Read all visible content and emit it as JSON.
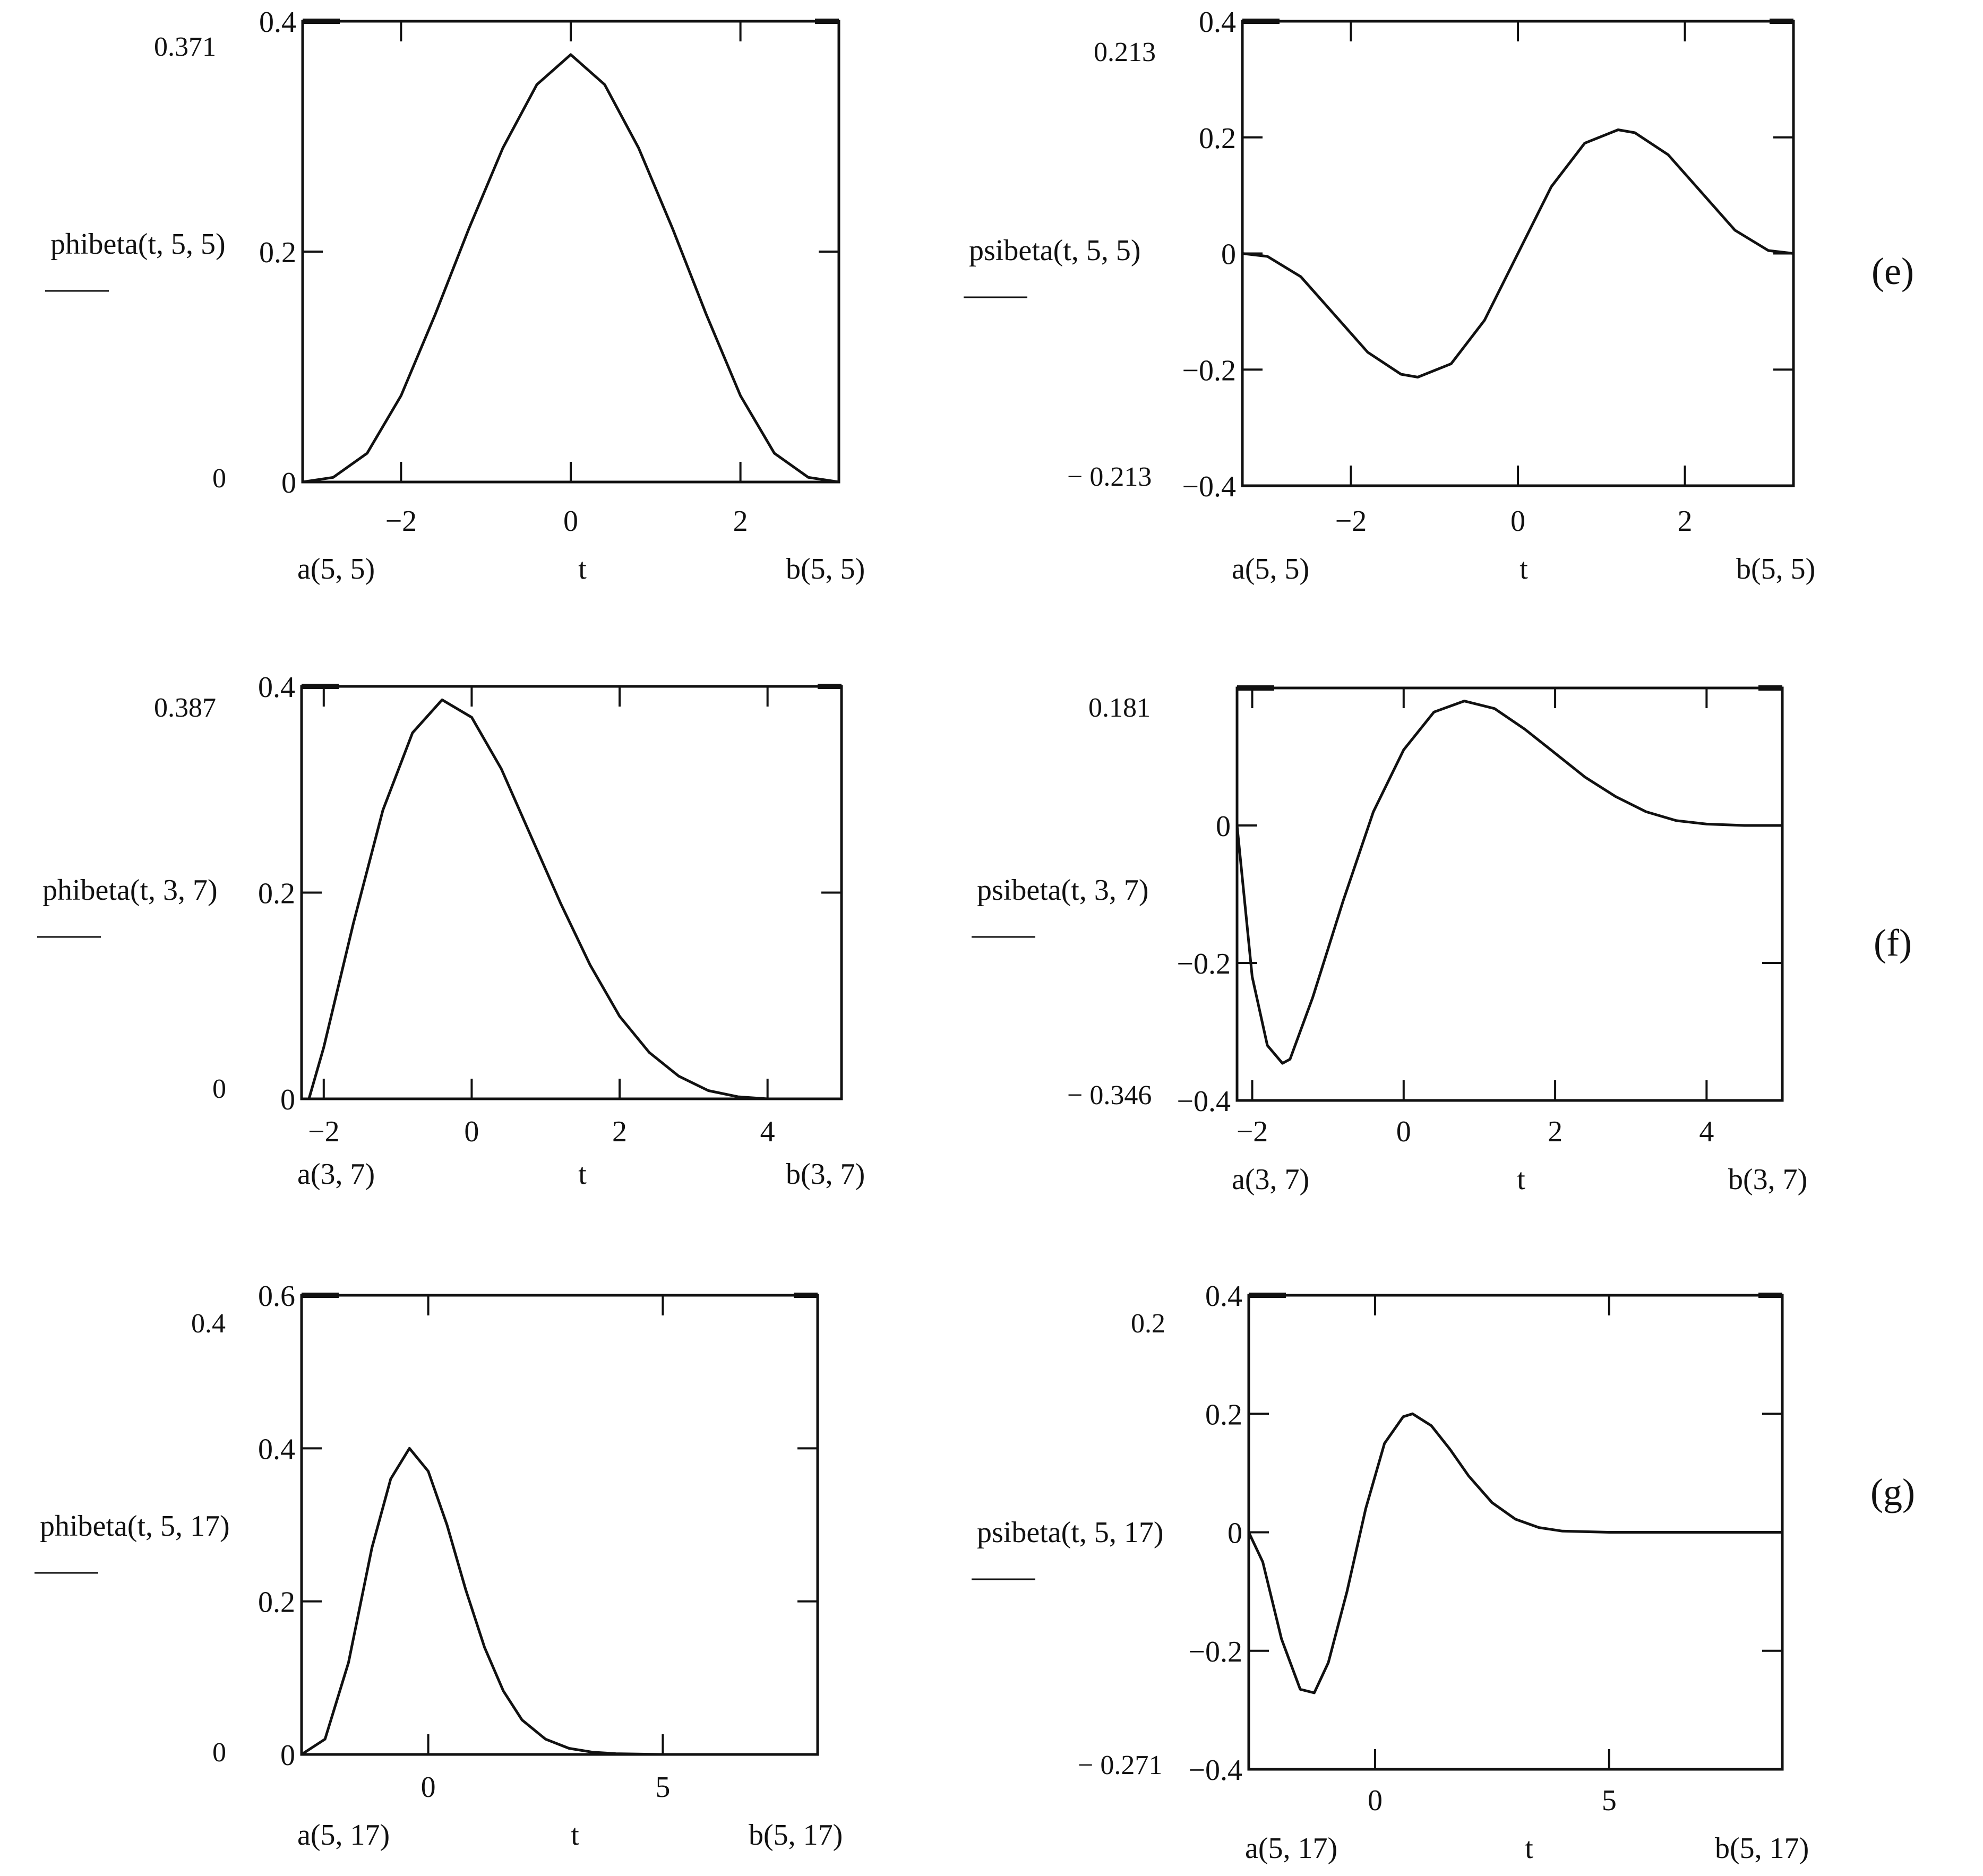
{
  "charts": [
    {
      "id": "e-left",
      "ylabel": "phibeta(t, 5, 5)",
      "xlabel": "t",
      "xlim_left_label": "a(5, 5)",
      "xlim_right_label": "b(5, 5)",
      "ymax_marker": "0.371",
      "ymin_marker": "0",
      "xticks": [
        {
          "v": -2,
          "label": "−2"
        },
        {
          "v": 0,
          "label": "0"
        },
        {
          "v": 2,
          "label": "2"
        }
      ],
      "yticks": [
        {
          "v": 0,
          "label": "0"
        },
        {
          "v": 0.2,
          "label": "0.2"
        },
        {
          "v": 0.4,
          "label": "0.4"
        }
      ]
    },
    {
      "id": "e-right",
      "ylabel": "psibeta(t, 5, 5)",
      "xlabel": "t",
      "xlim_left_label": "a(5, 5)",
      "xlim_right_label": "b(5, 5)",
      "ymax_marker": "0.213",
      "ymin_marker": "− 0.213",
      "xticks": [
        {
          "v": -2,
          "label": "−2"
        },
        {
          "v": 0,
          "label": "0"
        },
        {
          "v": 2,
          "label": "2"
        }
      ],
      "yticks": [
        {
          "v": -0.4,
          "label": "−0.4"
        },
        {
          "v": -0.2,
          "label": "−0.2"
        },
        {
          "v": 0,
          "label": "0"
        },
        {
          "v": 0.2,
          "label": "0.2"
        },
        {
          "v": 0.4,
          "label": "0.4"
        }
      ]
    },
    {
      "id": "f-left",
      "ylabel": "phibeta(t, 3, 7)",
      "xlabel": "t",
      "xlim_left_label": "a(3, 7)",
      "xlim_right_label": "b(3, 7)",
      "ymax_marker": "0.387",
      "ymin_marker": "0",
      "xticks": [
        {
          "v": -2,
          "label": "−2"
        },
        {
          "v": 0,
          "label": "0"
        },
        {
          "v": 2,
          "label": "2"
        },
        {
          "v": 4,
          "label": "4"
        }
      ],
      "yticks": [
        {
          "v": 0,
          "label": "0"
        },
        {
          "v": 0.2,
          "label": "0.2"
        },
        {
          "v": 0.4,
          "label": "0.4"
        }
      ]
    },
    {
      "id": "f-right",
      "ylabel": "psibeta(t, 3, 7)",
      "xlabel": "t",
      "xlim_left_label": "a(3, 7)",
      "xlim_right_label": "b(3, 7)",
      "ymax_marker": "0.181",
      "ymin_marker": "− 0.346",
      "xticks": [
        {
          "v": -2,
          "label": "−2"
        },
        {
          "v": 0,
          "label": "0"
        },
        {
          "v": 2,
          "label": "2"
        },
        {
          "v": 4,
          "label": "4"
        }
      ],
      "yticks": [
        {
          "v": -0.4,
          "label": "−0.4"
        },
        {
          "v": -0.2,
          "label": "−0.2"
        },
        {
          "v": 0,
          "label": "0"
        }
      ]
    },
    {
      "id": "g-left",
      "ylabel": "phibeta(t, 5, 17)",
      "xlabel": "t",
      "xlim_left_label": "a(5, 17)",
      "xlim_right_label": "b(5, 17)",
      "ymax_marker": "0.4",
      "ymin_marker": "0",
      "xticks": [
        {
          "v": 0,
          "label": "0"
        },
        {
          "v": 5,
          "label": "5"
        }
      ],
      "yticks": [
        {
          "v": 0,
          "label": "0"
        },
        {
          "v": 0.2,
          "label": "0.2"
        },
        {
          "v": 0.4,
          "label": "0.4"
        },
        {
          "v": 0.6,
          "label": "0.6"
        }
      ]
    },
    {
      "id": "g-right",
      "ylabel": "psibeta(t, 5, 17)",
      "xlabel": "t",
      "xlim_left_label": "a(5, 17)",
      "xlim_right_label": "b(5, 17)",
      "ymax_marker": "0.2",
      "ymin_marker": "− 0.271",
      "xticks": [
        {
          "v": 0,
          "label": "0"
        },
        {
          "v": 5,
          "label": "5"
        }
      ],
      "yticks": [
        {
          "v": -0.4,
          "label": "−0.4"
        },
        {
          "v": -0.2,
          "label": "−0.2"
        },
        {
          "v": 0,
          "label": "0"
        },
        {
          "v": 0.2,
          "label": "0.2"
        },
        {
          "v": 0.4,
          "label": "0.4"
        }
      ]
    }
  ],
  "row_labels": [
    "(e)",
    "(f)",
    "(g)"
  ],
  "chart_data": [
    {
      "type": "line",
      "ylabel": "phibeta(t, 5, 5)",
      "xlabel": "t",
      "xlim": [
        -3.16,
        3.16
      ],
      "ylim": [
        0,
        0.4
      ],
      "grid": false,
      "series": [
        {
          "x": [
            -3.16,
            -2.8,
            -2.4,
            -2.0,
            -1.6,
            -1.2,
            -0.8,
            -0.4,
            0.0,
            0.4,
            0.8,
            1.2,
            1.6,
            2.0,
            2.4,
            2.8,
            3.16
          ],
          "y": [
            0.0,
            0.004,
            0.025,
            0.075,
            0.145,
            0.22,
            0.29,
            0.345,
            0.371,
            0.345,
            0.29,
            0.22,
            0.145,
            0.075,
            0.025,
            0.004,
            0.0
          ]
        }
      ]
    },
    {
      "type": "line",
      "ylabel": "psibeta(t, 5, 5)",
      "xlabel": "t",
      "xlim": [
        -3.3,
        3.3
      ],
      "ylim": [
        -0.4,
        0.4
      ],
      "grid": false,
      "series": [
        {
          "x": [
            -3.3,
            -3.0,
            -2.6,
            -2.2,
            -1.8,
            -1.4,
            -1.2,
            -0.8,
            -0.4,
            0.0,
            0.4,
            0.8,
            1.2,
            1.4,
            1.8,
            2.2,
            2.6,
            3.0,
            3.3
          ],
          "y": [
            0.0,
            -0.005,
            -0.04,
            -0.105,
            -0.17,
            -0.208,
            -0.213,
            -0.19,
            -0.115,
            0.0,
            0.115,
            0.19,
            0.213,
            0.208,
            0.17,
            0.105,
            0.04,
            0.005,
            0.0
          ]
        }
      ]
    },
    {
      "type": "line",
      "ylabel": "phibeta(t, 3, 7)",
      "xlabel": "t",
      "xlim": [
        -2.3,
        5.0
      ],
      "ylim": [
        0,
        0.4
      ],
      "grid": false,
      "series": [
        {
          "x": [
            -2.2,
            -2.0,
            -1.6,
            -1.2,
            -0.8,
            -0.4,
            0.0,
            0.4,
            0.8,
            1.2,
            1.6,
            2.0,
            2.4,
            2.8,
            3.2,
            3.6,
            4.0,
            4.5,
            5.0
          ],
          "y": [
            0.0,
            0.05,
            0.17,
            0.28,
            0.355,
            0.387,
            0.37,
            0.32,
            0.255,
            0.19,
            0.13,
            0.08,
            0.045,
            0.022,
            0.008,
            0.002,
            0.0,
            0.0,
            0.0
          ]
        }
      ]
    },
    {
      "type": "line",
      "ylabel": "psibeta(t, 3, 7)",
      "xlabel": "t",
      "xlim": [
        -2.2,
        5.0
      ],
      "ylim": [
        -0.4,
        0.2
      ],
      "grid": false,
      "series": [
        {
          "x": [
            -2.2,
            -2.0,
            -1.8,
            -1.6,
            -1.5,
            -1.2,
            -0.8,
            -0.4,
            0.0,
            0.4,
            0.8,
            1.2,
            1.6,
            2.0,
            2.4,
            2.8,
            3.2,
            3.6,
            4.0,
            4.5,
            5.0
          ],
          "y": [
            0.0,
            -0.22,
            -0.32,
            -0.346,
            -0.34,
            -0.25,
            -0.11,
            0.02,
            0.11,
            0.165,
            0.181,
            0.17,
            0.14,
            0.105,
            0.07,
            0.042,
            0.02,
            0.007,
            0.002,
            0.0,
            0.0
          ]
        }
      ]
    },
    {
      "type": "line",
      "ylabel": "phibeta(t, 5, 17)",
      "xlabel": "t",
      "xlim": [
        -2.7,
        8.3
      ],
      "ylim": [
        0,
        0.6
      ],
      "grid": false,
      "series": [
        {
          "x": [
            -2.7,
            -2.2,
            -1.7,
            -1.2,
            -0.8,
            -0.4,
            0.0,
            0.4,
            0.8,
            1.2,
            1.6,
            2.0,
            2.5,
            3.0,
            3.5,
            4.0,
            5.0,
            6.0,
            7.0,
            8.3
          ],
          "y": [
            0.0,
            0.02,
            0.12,
            0.27,
            0.36,
            0.4,
            0.37,
            0.3,
            0.215,
            0.14,
            0.083,
            0.045,
            0.02,
            0.008,
            0.003,
            0.001,
            0.0,
            0.0,
            0.0,
            0.0
          ]
        }
      ]
    },
    {
      "type": "line",
      "ylabel": "psibeta(t, 5, 17)",
      "xlabel": "t",
      "xlim": [
        -2.7,
        8.7
      ],
      "ylim": [
        -0.4,
        0.4
      ],
      "grid": false,
      "series": [
        {
          "x": [
            -2.7,
            -2.4,
            -2.0,
            -1.6,
            -1.3,
            -1.0,
            -0.6,
            -0.2,
            0.2,
            0.6,
            0.8,
            1.2,
            1.6,
            2.0,
            2.5,
            3.0,
            3.5,
            4.0,
            5.0,
            6.0,
            7.0,
            8.7
          ],
          "y": [
            0.0,
            -0.05,
            -0.18,
            -0.265,
            -0.271,
            -0.22,
            -0.1,
            0.04,
            0.15,
            0.195,
            0.2,
            0.18,
            0.14,
            0.095,
            0.05,
            0.022,
            0.008,
            0.002,
            0.0,
            0.0,
            0.0,
            0.0
          ]
        }
      ]
    }
  ]
}
